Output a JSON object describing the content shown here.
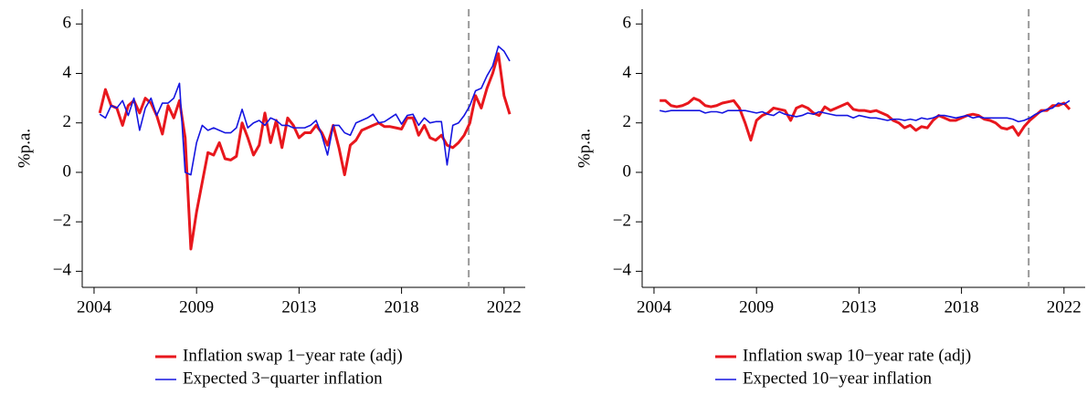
{
  "chart_data": [
    {
      "type": "line",
      "y_label": "%p.a.",
      "legend": "bottom",
      "grid": false,
      "x": [
        2004.25,
        2004.5,
        2004.75,
        2005,
        2005.25,
        2005.5,
        2005.75,
        2006,
        2006.25,
        2006.5,
        2006.75,
        2007,
        2007.25,
        2007.5,
        2007.75,
        2008,
        2008.25,
        2008.5,
        2008.75,
        2009,
        2009.25,
        2009.5,
        2009.75,
        2010,
        2010.25,
        2010.5,
        2010.75,
        2011,
        2011.25,
        2011.5,
        2011.75,
        2012,
        2012.25,
        2012.5,
        2012.75,
        2013,
        2013.25,
        2013.5,
        2013.75,
        2014,
        2014.25,
        2014.5,
        2014.75,
        2015,
        2015.25,
        2015.5,
        2015.75,
        2016,
        2016.25,
        2016.5,
        2016.75,
        2017,
        2017.25,
        2017.5,
        2017.75,
        2018,
        2018.25,
        2018.5,
        2018.75,
        2019,
        2019.25,
        2019.5,
        2019.75,
        2020,
        2020.25,
        2020.5,
        2020.75,
        2021,
        2021.25,
        2021.5,
        2021.75,
        2022,
        2022.25
      ],
      "series": [
        {
          "name": "Inflation swap 1−year rate (adj)",
          "color": "#e8171d",
          "width": 3,
          "values": [
            2.4,
            3.35,
            2.7,
            2.6,
            1.9,
            2.7,
            2.9,
            2.4,
            3.0,
            2.8,
            2.3,
            1.55,
            2.7,
            2.2,
            2.9,
            1.4,
            -3.1,
            -1.6,
            -0.4,
            0.8,
            0.7,
            1.2,
            0.55,
            0.5,
            0.65,
            2.0,
            1.4,
            0.7,
            1.1,
            2.4,
            1.2,
            2.1,
            1.0,
            2.2,
            1.9,
            1.4,
            1.6,
            1.6,
            1.9,
            1.6,
            1.1,
            1.9,
            1.0,
            -0.1,
            1.1,
            1.3,
            1.7,
            1.8,
            1.9,
            2.0,
            1.85,
            1.85,
            1.8,
            1.75,
            2.2,
            2.2,
            1.5,
            1.9,
            1.4,
            1.3,
            1.5,
            1.1,
            1.0,
            1.2,
            1.5,
            2.0,
            3.1,
            2.6,
            3.4,
            4.0,
            4.8,
            3.1,
            2.35
          ]
        },
        {
          "name": "Expected 3−quarter inflation",
          "color": "#1515e0",
          "width": 1.6,
          "values": [
            2.35,
            2.2,
            2.7,
            2.6,
            2.9,
            2.3,
            3.0,
            1.7,
            2.6,
            3.0,
            2.3,
            2.8,
            2.8,
            3.0,
            3.6,
            0.0,
            -0.1,
            1.2,
            1.9,
            1.7,
            1.8,
            1.7,
            1.6,
            1.6,
            1.8,
            2.55,
            1.8,
            2.0,
            2.1,
            1.9,
            2.2,
            2.1,
            1.9,
            1.9,
            1.8,
            1.8,
            1.8,
            1.9,
            2.1,
            1.5,
            0.7,
            1.9,
            1.9,
            1.6,
            1.5,
            2.0,
            2.1,
            2.2,
            2.35,
            2.0,
            2.05,
            2.2,
            2.35,
            1.95,
            2.3,
            2.35,
            1.9,
            2.2,
            2.0,
            2.05,
            2.05,
            0.3,
            1.9,
            2.0,
            2.3,
            2.7,
            3.3,
            3.4,
            3.9,
            4.3,
            5.1,
            4.9,
            4.5
          ]
        }
      ],
      "xlim": [
        2003.48,
        2022.93
      ],
      "ylim": [
        -4.65,
        6.6
      ],
      "xticks": [
        2004,
        {
          "value": 2008.5,
          "label": "2009"
        },
        2013,
        {
          "value": 2017.5,
          "label": "2018"
        },
        2022
      ],
      "yticks": [
        {
          "value": -4,
          "label": "−4"
        },
        {
          "value": -2,
          "label": "−2"
        },
        0,
        2,
        4,
        6
      ],
      "vline": 2020.45
    },
    {
      "type": "line",
      "y_label": "%p.a.",
      "legend": "bottom",
      "grid": false,
      "x": [
        2004.25,
        2004.5,
        2004.75,
        2005,
        2005.25,
        2005.5,
        2005.75,
        2006,
        2006.25,
        2006.5,
        2006.75,
        2007,
        2007.25,
        2007.5,
        2007.75,
        2008,
        2008.25,
        2008.5,
        2008.75,
        2009,
        2009.25,
        2009.5,
        2009.75,
        2010,
        2010.25,
        2010.5,
        2010.75,
        2011,
        2011.25,
        2011.5,
        2011.75,
        2012,
        2012.25,
        2012.5,
        2012.75,
        2013,
        2013.25,
        2013.5,
        2013.75,
        2014,
        2014.25,
        2014.5,
        2014.75,
        2015,
        2015.25,
        2015.5,
        2015.75,
        2016,
        2016.25,
        2016.5,
        2016.75,
        2017,
        2017.25,
        2017.5,
        2017.75,
        2018,
        2018.25,
        2018.5,
        2018.75,
        2019,
        2019.25,
        2019.5,
        2019.75,
        2020,
        2020.25,
        2020.5,
        2020.75,
        2021,
        2021.25,
        2021.5,
        2021.75,
        2022,
        2022.25
      ],
      "series": [
        {
          "name": "Inflation swap 10−year rate (adj)",
          "color": "#e8171d",
          "width": 3,
          "values": [
            2.9,
            2.9,
            2.7,
            2.65,
            2.7,
            2.8,
            3.0,
            2.9,
            2.7,
            2.65,
            2.7,
            2.8,
            2.85,
            2.9,
            2.6,
            2.0,
            1.3,
            2.1,
            2.3,
            2.4,
            2.6,
            2.55,
            2.5,
            2.1,
            2.6,
            2.7,
            2.6,
            2.4,
            2.3,
            2.65,
            2.5,
            2.6,
            2.7,
            2.8,
            2.55,
            2.5,
            2.5,
            2.45,
            2.5,
            2.4,
            2.3,
            2.1,
            2.0,
            1.8,
            1.9,
            1.7,
            1.85,
            1.8,
            2.1,
            2.3,
            2.2,
            2.1,
            2.1,
            2.2,
            2.3,
            2.35,
            2.3,
            2.15,
            2.1,
            2.0,
            1.8,
            1.75,
            1.85,
            1.5,
            1.85,
            2.1,
            2.3,
            2.5,
            2.5,
            2.7,
            2.7,
            2.8,
            2.55
          ]
        },
        {
          "name": "Expected 10−year inflation",
          "color": "#1515e0",
          "width": 1.6,
          "values": [
            2.5,
            2.45,
            2.5,
            2.5,
            2.5,
            2.5,
            2.5,
            2.5,
            2.4,
            2.45,
            2.45,
            2.4,
            2.5,
            2.5,
            2.5,
            2.5,
            2.45,
            2.4,
            2.45,
            2.35,
            2.3,
            2.45,
            2.35,
            2.3,
            2.25,
            2.3,
            2.4,
            2.35,
            2.45,
            2.4,
            2.35,
            2.3,
            2.3,
            2.3,
            2.2,
            2.3,
            2.25,
            2.2,
            2.2,
            2.15,
            2.1,
            2.15,
            2.15,
            2.1,
            2.15,
            2.1,
            2.2,
            2.15,
            2.2,
            2.3,
            2.3,
            2.25,
            2.2,
            2.25,
            2.3,
            2.2,
            2.25,
            2.2,
            2.2,
            2.2,
            2.2,
            2.2,
            2.15,
            2.05,
            2.1,
            2.2,
            2.35,
            2.45,
            2.55,
            2.6,
            2.8,
            2.75,
            2.9
          ]
        }
      ],
      "xlim": [
        2003.48,
        2022.93
      ],
      "ylim": [
        -4.65,
        6.6
      ],
      "xticks": [
        2004,
        {
          "value": 2008.5,
          "label": "2009"
        },
        2013,
        {
          "value": 2017.5,
          "label": "2018"
        },
        2022
      ],
      "yticks": [
        {
          "value": -4,
          "label": "−4"
        },
        {
          "value": -2,
          "label": "−2"
        },
        0,
        2,
        4,
        6
      ],
      "vline": 2020.45
    }
  ]
}
